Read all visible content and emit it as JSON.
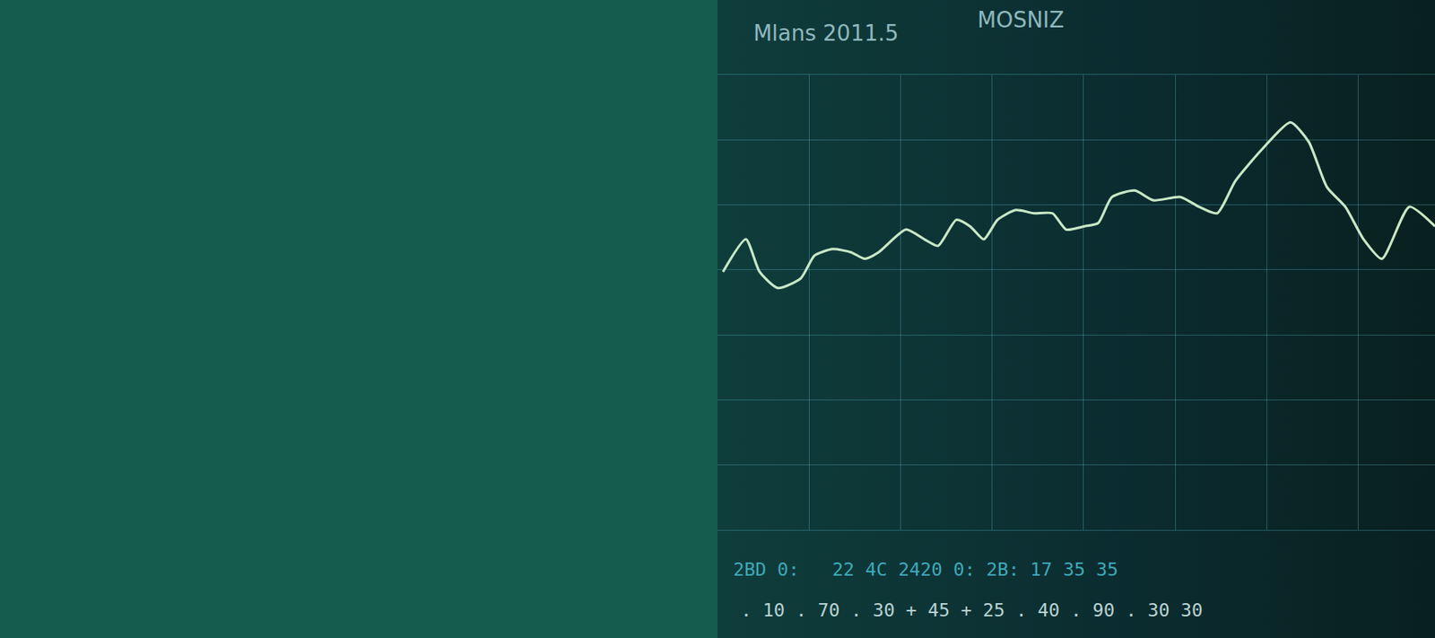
{
  "chart_data": {
    "type": "line",
    "title": "Mlans 2011.5",
    "subtitle": "MOSNIZ",
    "x": [
      6,
      31,
      46,
      66,
      91,
      106,
      126,
      146,
      161,
      176,
      206,
      226,
      241,
      261,
      276,
      291,
      306,
      326,
      346,
      366,
      381,
      401,
      416,
      431,
      456,
      476,
      506,
      526,
      546,
      566,
      596,
      626,
      646,
      666,
      686,
      706,
      726,
      756,
      784
    ],
    "series": [
      {
        "color": "#c8e8c6",
        "values": [
          397,
          447,
          397,
          372,
          387,
          422,
          432,
          427,
          417,
          427,
          462,
          447,
          437,
          477,
          467,
          447,
          477,
          492,
          487,
          487,
          462,
          467,
          472,
          512,
          522,
          507,
          512,
          497,
          487,
          537,
          587,
          627,
          597,
          527,
          497,
          447,
          417,
          497,
          467
        ]
      }
    ],
    "xlim": [
      0,
      784
    ],
    "ylim": [
      0,
      700
    ],
    "xticks": [
      0,
      100,
      200,
      300,
      400,
      500,
      600,
      700
    ],
    "yticks": [
      0,
      100,
      200,
      300,
      400,
      500,
      600,
      700
    ],
    "grid": true,
    "tick_labels": false,
    "annotations": [
      "2BD 0:   22 4C 2420 0: 2B: 17 35 35",
      ". 10 . 70 . 30 + 45 + 25 . 40 . 90 . 30 30"
    ]
  }
}
